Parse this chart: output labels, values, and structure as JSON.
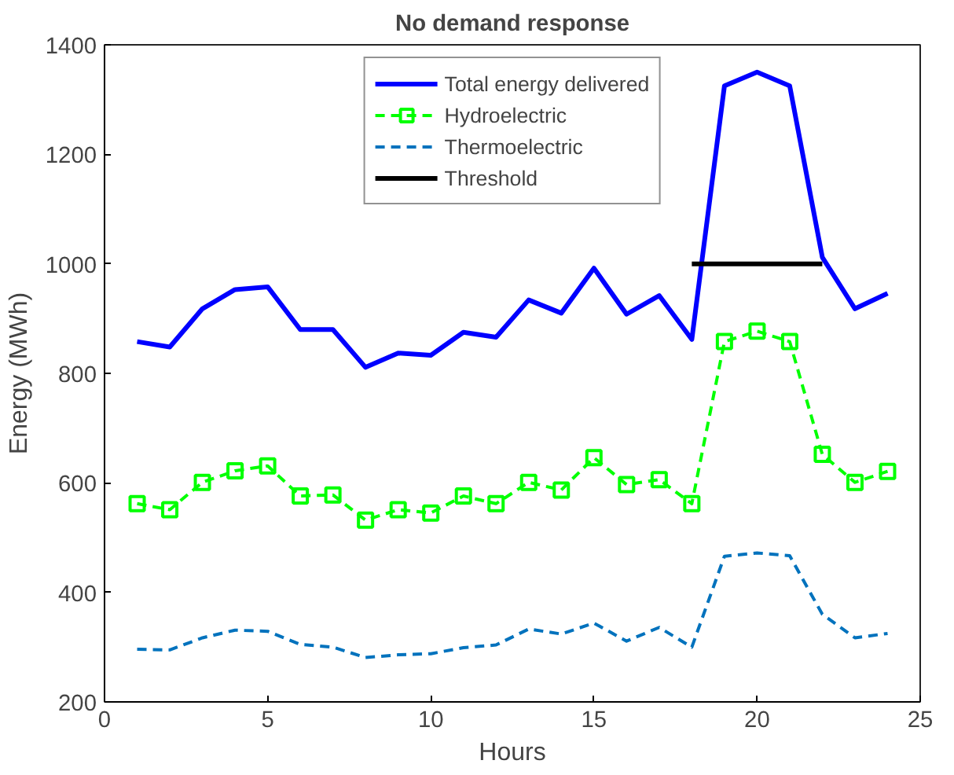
{
  "chart_data": {
    "type": "line",
    "title": "No demand response",
    "xlabel": "Hours",
    "ylabel": "Energy (MWh)",
    "x": [
      1,
      2,
      3,
      4,
      5,
      6,
      7,
      8,
      9,
      10,
      11,
      12,
      13,
      14,
      15,
      16,
      17,
      18,
      19,
      20,
      21,
      22,
      23,
      24
    ],
    "series": [
      {
        "name": "Total energy delivered",
        "color": "#0000ff",
        "line_style": "solid",
        "marker": "none",
        "values": [
          858,
          848,
          918,
          953,
          958,
          880,
          880,
          811,
          837,
          833,
          875,
          866,
          934,
          910,
          992,
          908,
          942,
          862,
          1325,
          1350,
          1325,
          1012,
          918,
          946
        ]
      },
      {
        "name": "Hydroelectric",
        "color": "#00ff00",
        "line_style": "dashed",
        "marker": "square",
        "values": [
          562,
          551,
          601,
          622,
          631,
          576,
          578,
          532,
          551,
          545,
          576,
          562,
          601,
          587,
          646,
          597,
          606,
          562,
          858,
          877,
          858,
          652,
          601,
          621
        ]
      },
      {
        "name": "Thermoelectric",
        "color": "#0072bd",
        "line_style": "dashed",
        "marker": "none",
        "values": [
          296,
          295,
          317,
          331,
          329,
          305,
          300,
          281,
          286,
          288,
          299,
          304,
          333,
          324,
          344,
          311,
          336,
          300,
          466,
          472,
          467,
          360,
          317,
          325
        ]
      },
      {
        "name": "Threshold",
        "color": "#000000",
        "line_style": "solid",
        "marker": "none",
        "x": [
          18,
          22
        ],
        "values": [
          1000,
          1000
        ]
      }
    ],
    "xlim": [
      0,
      25
    ],
    "ylim": [
      200,
      1400
    ],
    "xticks": [
      0,
      5,
      10,
      15,
      20,
      25
    ],
    "yticks": [
      200,
      400,
      600,
      800,
      1000,
      1200,
      1400
    ],
    "grid": false,
    "legend": "top"
  }
}
